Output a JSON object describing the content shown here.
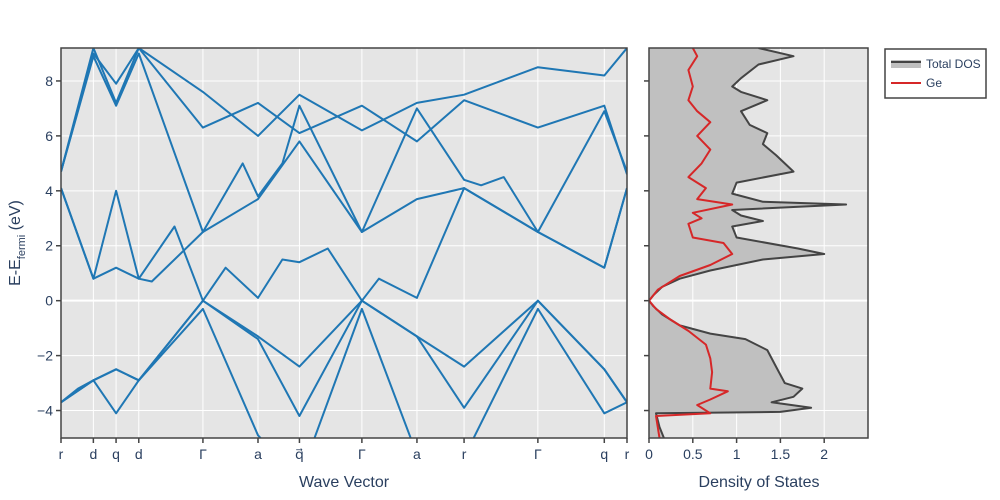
{
  "chart_data": [
    {
      "type": "line",
      "panel": "band-structure",
      "xlabel": "Wave Vector",
      "ylabel_main": "E-E",
      "ylabel_sub": "fermi",
      "ylabel_unit": " (eV)",
      "ylim": [
        -5,
        9.2
      ],
      "yticks": [
        -4,
        -2,
        0,
        2,
        4,
        6,
        8
      ],
      "ytick_labels": [
        "−4",
        "−2",
        "0",
        "2",
        "4",
        "6",
        "8"
      ],
      "kpoints": [
        {
          "label": "r",
          "x": 0
        },
        {
          "label": "d",
          "x": 0.57
        },
        {
          "label": "q",
          "x": 0.97
        },
        {
          "label": "d",
          "x": 1.37
        },
        {
          "label": "Γ",
          "x": 2.5
        },
        {
          "label": "a",
          "x": 3.47
        },
        {
          "label": "q⃗",
          "x": 4.2
        },
        {
          "label": "Γ",
          "x": 5.3
        },
        {
          "label": "a",
          "x": 6.27
        },
        {
          "label": "r",
          "x": 7.1
        },
        {
          "label": "Γ",
          "x": 8.4
        },
        {
          "label": "q",
          "x": 9.57
        },
        {
          "label": "r",
          "x": 9.97
        }
      ],
      "xlim": [
        0,
        9.97
      ],
      "series_color": "#1f77b4",
      "bands": [
        [
          [
            0,
            -3.7
          ],
          [
            0.3,
            -3.2
          ],
          [
            0.57,
            -2.9
          ],
          [
            0.97,
            -4.1
          ],
          [
            1.37,
            -2.9
          ],
          [
            2.5,
            -0.3
          ],
          [
            3.47,
            -4.9
          ],
          [
            4.2,
            -6.5
          ],
          [
            5.3,
            -0.3
          ],
          [
            6.27,
            -5.6
          ],
          [
            7.1,
            -5.7
          ],
          [
            8.4,
            -0.3
          ],
          [
            9.57,
            -4.1
          ],
          [
            9.97,
            -3.7
          ]
        ],
        [
          [
            0,
            -3.7
          ],
          [
            0.57,
            -2.9
          ],
          [
            0.97,
            -2.5
          ],
          [
            1.37,
            -2.9
          ],
          [
            2.5,
            0
          ],
          [
            3.47,
            -1.4
          ],
          [
            4.2,
            -4.2
          ],
          [
            5.3,
            0
          ],
          [
            6.27,
            -1.3
          ],
          [
            7.1,
            -3.9
          ],
          [
            8.4,
            0
          ],
          [
            9.57,
            -2.5
          ],
          [
            9.97,
            -3.7
          ]
        ],
        [
          [
            0,
            -3.7
          ],
          [
            0.57,
            -2.9
          ],
          [
            0.97,
            -2.5
          ],
          [
            1.37,
            -2.9
          ],
          [
            2.5,
            0
          ],
          [
            3.47,
            -1.3
          ],
          [
            4.2,
            -2.4
          ],
          [
            5.3,
            0
          ],
          [
            6.27,
            -1.3
          ],
          [
            7.1,
            -2.4
          ],
          [
            8.4,
            0
          ],
          [
            9.57,
            -2.5
          ],
          [
            9.97,
            -3.7
          ]
        ],
        [
          [
            0,
            4.1
          ],
          [
            0.57,
            0.8
          ],
          [
            0.97,
            1.2
          ],
          [
            1.37,
            0.8
          ],
          [
            1.6,
            0.7
          ],
          [
            2.5,
            2.5
          ],
          [
            3.47,
            3.7
          ],
          [
            4.2,
            5.8
          ],
          [
            5.3,
            2.5
          ],
          [
            6.27,
            3.7
          ],
          [
            7.1,
            4.1
          ],
          [
            8.4,
            2.5
          ],
          [
            9.57,
            1.2
          ],
          [
            9.97,
            4.1
          ]
        ],
        [
          [
            0,
            4.1
          ],
          [
            0.57,
            0.8
          ],
          [
            0.97,
            4
          ],
          [
            1.37,
            0.8
          ],
          [
            2,
            2.7
          ],
          [
            2.5,
            0
          ],
          [
            2.9,
            1.2
          ],
          [
            3.47,
            0.1
          ],
          [
            3.9,
            1.5
          ],
          [
            4.2,
            1.4
          ],
          [
            4.7,
            1.9
          ],
          [
            5.3,
            0
          ],
          [
            5.6,
            0.8
          ],
          [
            6.27,
            0.1
          ],
          [
            7.1,
            4.1
          ],
          [
            8.4,
            2.5
          ],
          [
            9.57,
            1.2
          ],
          [
            9.97,
            4.1
          ]
        ],
        [
          [
            0,
            4.7
          ],
          [
            0.57,
            8.9
          ],
          [
            0.97,
            7.1
          ],
          [
            1.37,
            9
          ],
          [
            2.5,
            2.5
          ],
          [
            3.2,
            5
          ],
          [
            3.47,
            3.8
          ],
          [
            3.9,
            5
          ],
          [
            4.2,
            7.1
          ],
          [
            5.3,
            2.5
          ],
          [
            6.27,
            7
          ],
          [
            7.1,
            4.4
          ],
          [
            7.4,
            4.2
          ],
          [
            7.8,
            4.5
          ],
          [
            8.4,
            2.5
          ],
          [
            9.57,
            6.9
          ],
          [
            9.97,
            4.7
          ]
        ],
        [
          [
            0,
            4.7
          ],
          [
            0.57,
            9.2
          ],
          [
            0.97,
            7.2
          ],
          [
            1.37,
            9.2
          ],
          [
            2.5,
            6.3
          ],
          [
            3.47,
            7.2
          ],
          [
            4.2,
            6.1
          ],
          [
            5.3,
            7.1
          ],
          [
            6.27,
            5.8
          ],
          [
            7.1,
            7.3
          ],
          [
            8.4,
            6.3
          ],
          [
            9.57,
            7.1
          ],
          [
            9.97,
            4.6
          ]
        ],
        [
          [
            0,
            4.7
          ],
          [
            0.57,
            9
          ],
          [
            0.97,
            7.9
          ],
          [
            1.37,
            9.2
          ],
          [
            2.5,
            7.6
          ],
          [
            3.47,
            6
          ],
          [
            4.2,
            7.5
          ],
          [
            5.3,
            6.2
          ],
          [
            6.27,
            7.2
          ],
          [
            7.1,
            7.5
          ],
          [
            8.4,
            8.5
          ],
          [
            9.57,
            8.2
          ],
          [
            9.97,
            9.2
          ]
        ]
      ]
    },
    {
      "type": "area",
      "panel": "density-of-states",
      "xlabel": "Density of States",
      "xlim": [
        0,
        2.5
      ],
      "xticks": [
        0,
        0.5,
        1,
        1.5,
        2
      ],
      "xtick_labels": [
        "0",
        "0.5",
        "1",
        "1.5",
        "2"
      ],
      "ylim": [
        -5,
        9.2
      ],
      "legend_position": "top-right",
      "series": [
        {
          "name": "Total DOS",
          "line_color": "#444444",
          "fill_color": "#c0c0c0",
          "points": [
            [
              0.17,
              -5
            ],
            [
              0.12,
              -4.6
            ],
            [
              0.08,
              -4.1
            ],
            [
              1.5,
              -4.05
            ],
            [
              1.85,
              -3.9
            ],
            [
              1.4,
              -3.7
            ],
            [
              1.65,
              -3.5
            ],
            [
              1.75,
              -3.2
            ],
            [
              1.55,
              -3
            ],
            [
              1.45,
              -2.4
            ],
            [
              1.35,
              -1.8
            ],
            [
              1.1,
              -1.4
            ],
            [
              0.7,
              -1.2
            ],
            [
              0.35,
              -0.9
            ],
            [
              0.15,
              -0.5
            ],
            [
              0.05,
              -0.2
            ],
            [
              0,
              0
            ],
            [
              0.05,
              0.2
            ],
            [
              0.15,
              0.5
            ],
            [
              0.35,
              0.8
            ],
            [
              0.7,
              1.1
            ],
            [
              1.3,
              1.5
            ],
            [
              2,
              1.7
            ],
            [
              1.7,
              1.9
            ],
            [
              1,
              2.3
            ],
            [
              0.95,
              2.7
            ],
            [
              1.3,
              2.9
            ],
            [
              1.05,
              3.1
            ],
            [
              0.95,
              3.3
            ],
            [
              2.25,
              3.5
            ],
            [
              1.3,
              3.6
            ],
            [
              0.95,
              3.9
            ],
            [
              1,
              4.3
            ],
            [
              1.65,
              4.7
            ],
            [
              1.45,
              5.3
            ],
            [
              1.3,
              5.7
            ],
            [
              1.35,
              6.1
            ],
            [
              1.15,
              6.4
            ],
            [
              1.05,
              6.9
            ],
            [
              1.35,
              7.3
            ],
            [
              1.05,
              7.6
            ],
            [
              0.95,
              7.8
            ],
            [
              1.05,
              8.1
            ],
            [
              1.25,
              8.6
            ],
            [
              1.65,
              8.9
            ],
            [
              1.25,
              9.2
            ]
          ]
        },
        {
          "name": "Ge",
          "line_color": "#d62728",
          "points": [
            [
              0.12,
              -5
            ],
            [
              0.08,
              -4.2
            ],
            [
              0.7,
              -4.1
            ],
            [
              0.55,
              -3.8
            ],
            [
              0.7,
              -3.6
            ],
            [
              0.9,
              -3.3
            ],
            [
              0.7,
              -3.2
            ],
            [
              0.72,
              -2.6
            ],
            [
              0.7,
              -2.1
            ],
            [
              0.65,
              -1.6
            ],
            [
              0.45,
              -1.1
            ],
            [
              0.25,
              -0.7
            ],
            [
              0.08,
              -0.3
            ],
            [
              0,
              0
            ],
            [
              0.1,
              0.4
            ],
            [
              0.35,
              0.9
            ],
            [
              0.7,
              1.3
            ],
            [
              0.95,
              1.7
            ],
            [
              0.85,
              2.1
            ],
            [
              0.5,
              2.3
            ],
            [
              0.45,
              2.8
            ],
            [
              0.6,
              3
            ],
            [
              0.5,
              3.2
            ],
            [
              0.95,
              3.5
            ],
            [
              0.55,
              3.7
            ],
            [
              0.65,
              4.1
            ],
            [
              0.45,
              4.5
            ],
            [
              0.6,
              5
            ],
            [
              0.7,
              5.5
            ],
            [
              0.55,
              6
            ],
            [
              0.7,
              6.5
            ],
            [
              0.55,
              6.9
            ],
            [
              0.45,
              7.3
            ],
            [
              0.5,
              7.8
            ],
            [
              0.45,
              8.4
            ],
            [
              0.55,
              8.9
            ],
            [
              0.5,
              9.2
            ]
          ]
        }
      ]
    }
  ]
}
